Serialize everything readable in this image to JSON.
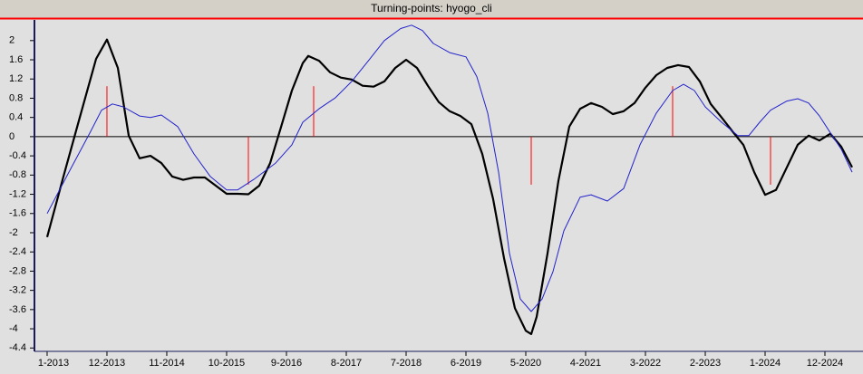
{
  "chart_data": {
    "type": "line",
    "title": "Turning-points: hyogo_cli",
    "xlim": [
      -2.33,
      150
    ],
    "ylim": [
      -4.47,
      2.43
    ],
    "yticks": [
      2,
      1.6,
      1.2,
      0.8,
      0.4,
      0,
      -0.4,
      -0.8,
      -1.2,
      -1.6,
      -2,
      -2.4,
      -2.8,
      -3.2,
      -3.6,
      -4,
      -4.4
    ],
    "xticks": [
      {
        "value": 0,
        "label": "1-2013"
      },
      {
        "value": 11,
        "label": "12-2013"
      },
      {
        "value": 22,
        "label": "11-2014"
      },
      {
        "value": 33,
        "label": "10-2015"
      },
      {
        "value": 44,
        "label": "9-2016"
      },
      {
        "value": 55,
        "label": "8-2017"
      },
      {
        "value": 66,
        "label": "7-2018"
      },
      {
        "value": 77,
        "label": "6-2019"
      },
      {
        "value": 88,
        "label": "5-2020"
      },
      {
        "value": 99,
        "label": "4-2021"
      },
      {
        "value": 110,
        "label": "3-2022"
      },
      {
        "value": 121,
        "label": "2-2023"
      },
      {
        "value": 132,
        "label": "1-2024"
      },
      {
        "value": 143,
        "label": "12-2024"
      }
    ],
    "zero_line": true,
    "series": [
      {
        "color": "#000000",
        "line_width": 2.2,
        "x": [
          0,
          3,
          6,
          9,
          11,
          13,
          15,
          17,
          19,
          21,
          23,
          25,
          27,
          29,
          31,
          33,
          35,
          37,
          39,
          41,
          43,
          45,
          47,
          48,
          50,
          52,
          54,
          56,
          58,
          60,
          62,
          64,
          66,
          68,
          70,
          72,
          74,
          76,
          78,
          80,
          82,
          84,
          86,
          88,
          89,
          90,
          92,
          94,
          96,
          98,
          100,
          102,
          104,
          106,
          108,
          110,
          112,
          114,
          116,
          118,
          120,
          122,
          124,
          126,
          128,
          130,
          132,
          134,
          136,
          138,
          140,
          142,
          144,
          146,
          148
        ],
        "values": [
          -2.09,
          -0.83,
          0.4,
          1.62,
          2.02,
          1.43,
          0.02,
          -0.45,
          -0.4,
          -0.55,
          -0.83,
          -0.9,
          -0.85,
          -0.85,
          -1.02,
          -1.19,
          -1.19,
          -1.2,
          -1.02,
          -0.55,
          0.2,
          0.96,
          1.53,
          1.68,
          1.58,
          1.34,
          1.23,
          1.19,
          1.06,
          1.04,
          1.15,
          1.43,
          1.6,
          1.43,
          1.06,
          0.72,
          0.53,
          0.43,
          0.26,
          -0.36,
          -1.3,
          -2.53,
          -3.57,
          -4.04,
          -4.11,
          -3.75,
          -2.43,
          -0.92,
          0.21,
          0.58,
          0.7,
          0.62,
          0.47,
          0.53,
          0.7,
          1.02,
          1.28,
          1.43,
          1.49,
          1.45,
          1.15,
          0.68,
          0.4,
          0.11,
          -0.17,
          -0.74,
          -1.21,
          -1.11,
          -0.64,
          -0.17,
          0.02,
          -0.08,
          0.06,
          -0.21,
          -0.64
        ]
      },
      {
        "color": "#2222cc",
        "line_width": 1,
        "x": [
          0,
          4,
          8,
          10,
          12,
          14,
          17,
          19,
          21,
          24,
          27,
          30,
          33,
          35,
          38,
          42,
          45,
          47,
          50,
          53,
          56,
          59,
          62,
          65,
          67,
          69,
          71,
          74,
          77,
          79,
          81,
          83,
          85,
          87,
          89,
          91,
          93,
          95,
          98,
          100,
          103,
          106,
          109,
          112,
          115,
          117,
          119,
          121,
          124,
          127,
          129,
          131,
          133,
          136,
          138,
          140,
          142,
          144,
          146,
          148
        ],
        "values": [
          -1.6,
          -0.74,
          0.11,
          0.55,
          0.68,
          0.62,
          0.43,
          0.4,
          0.45,
          0.21,
          -0.36,
          -0.83,
          -1.11,
          -1.11,
          -0.89,
          -0.55,
          -0.17,
          0.3,
          0.58,
          0.81,
          1.15,
          1.57,
          2.0,
          2.25,
          2.32,
          2.21,
          1.94,
          1.75,
          1.66,
          1.25,
          0.49,
          -0.74,
          -2.43,
          -3.38,
          -3.64,
          -3.38,
          -2.81,
          -1.96,
          -1.26,
          -1.21,
          -1.34,
          -1.08,
          -0.17,
          0.49,
          0.96,
          1.09,
          0.96,
          0.62,
          0.3,
          0.02,
          0.02,
          0.3,
          0.55,
          0.74,
          0.79,
          0.7,
          0.43,
          0.08,
          -0.26,
          -0.74
        ]
      }
    ],
    "turning_points": {
      "color": "#ff0000",
      "x": [
        11,
        37,
        49,
        89,
        115,
        133
      ],
      "values": [
        1.05,
        -1,
        1.05,
        -1,
        1.05,
        -1
      ]
    }
  }
}
